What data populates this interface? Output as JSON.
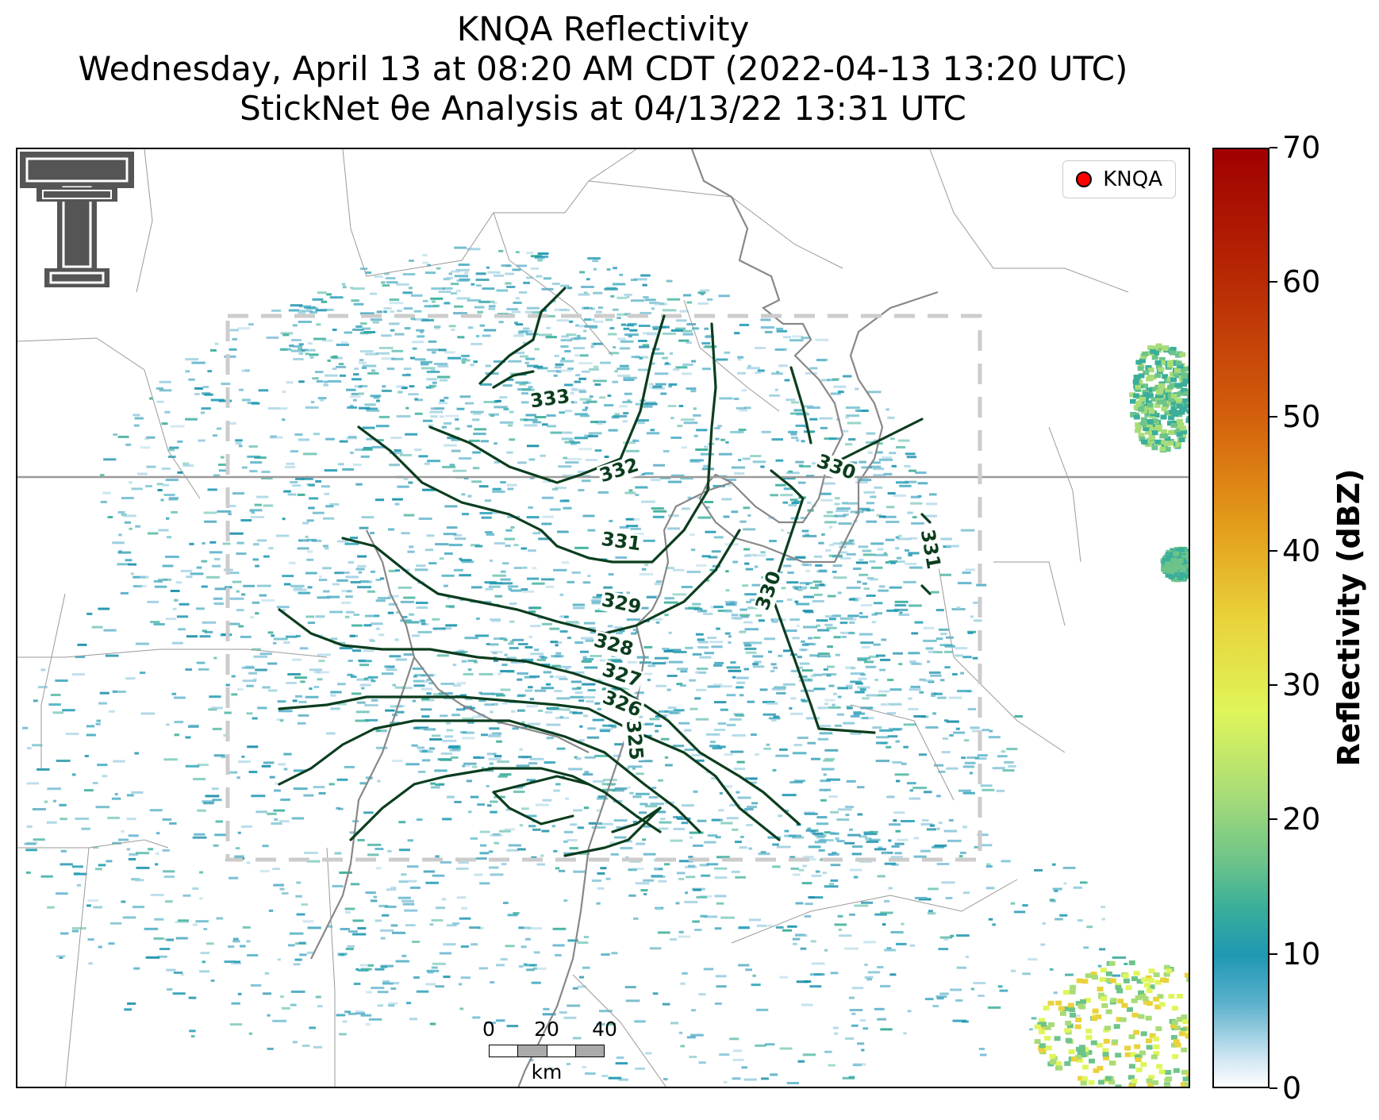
{
  "title": {
    "line1": "KNQA Reflectivity",
    "line2": "Wednesday, April 13 at 08:20 AM CDT (2022-04-13 13:20 UTC)",
    "line3": "StickNet θe Analysis at 04/13/22 13:31 UTC"
  },
  "legend": {
    "label": "KNQA",
    "marker_color": "#ff0000"
  },
  "scalebar": {
    "ticks": [
      "0",
      "20",
      "40"
    ],
    "unit": "km"
  },
  "contours": {
    "color": "#0b3d1e",
    "labels": [
      "333",
      "332",
      "331",
      "330",
      "330",
      "331",
      "329",
      "328",
      "327",
      "326",
      "325"
    ]
  },
  "colorbar": {
    "title": "Reflectivity (dBZ)",
    "min": 0,
    "max": 70,
    "ticks": [
      "0",
      "10",
      "20",
      "30",
      "40",
      "50",
      "60",
      "70"
    ]
  },
  "analysis_box_color": "#cccccc",
  "logo": {
    "name": "double-t-logo-icon",
    "color": "#555555"
  }
}
